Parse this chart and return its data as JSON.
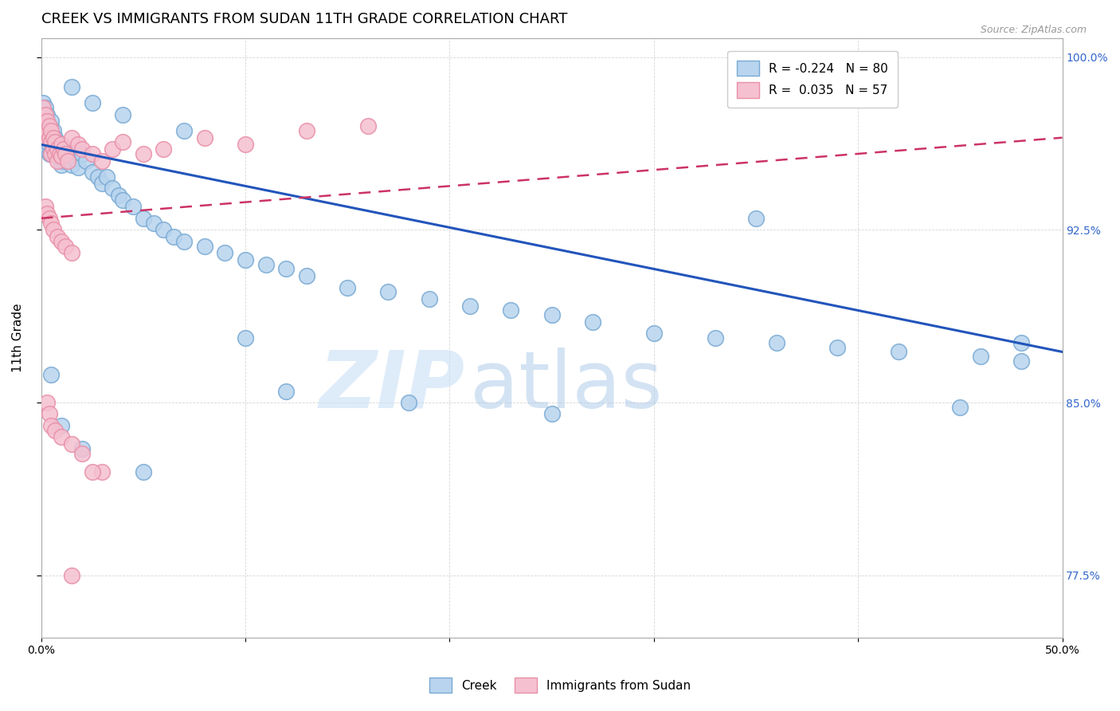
{
  "title": "CREEK VS IMMIGRANTS FROM SUDAN 11TH GRADE CORRELATION CHART",
  "source": "Source: ZipAtlas.com",
  "xlabel": "",
  "ylabel": "11th Grade",
  "xlim": [
    0.0,
    0.5
  ],
  "ylim": [
    0.748,
    1.008
  ],
  "xticks": [
    0.0,
    0.1,
    0.2,
    0.3,
    0.4,
    0.5
  ],
  "xticklabels": [
    "0.0%",
    "",
    "",
    "",
    "",
    "50.0%"
  ],
  "yticks": [
    0.775,
    0.85,
    0.925,
    1.0
  ],
  "yticklabels": [
    "77.5%",
    "85.0%",
    "92.5%",
    "100.0%"
  ],
  "creek_color": "#b8d4ee",
  "creek_edge": "#7aaad4",
  "sudan_color": "#f5c0d0",
  "sudan_edge": "#e890a8",
  "creek_trend_color": "#2255bb",
  "sudan_trend_color": "#cc3366",
  "watermark_zip": "ZIP",
  "watermark_atlas": "atlas",
  "background_color": "#ffffff",
  "title_fontsize": 13,
  "axis_label_fontsize": 11,
  "tick_fontsize": 10,
  "legend_fontsize": 11,
  "creek_x": [
    0.001,
    0.001,
    0.001,
    0.002,
    0.002,
    0.002,
    0.002,
    0.003,
    0.003,
    0.003,
    0.004,
    0.004,
    0.004,
    0.005,
    0.005,
    0.005,
    0.006,
    0.006,
    0.007,
    0.007,
    0.008,
    0.008,
    0.009,
    0.01,
    0.01,
    0.011,
    0.012,
    0.013,
    0.015,
    0.016,
    0.018,
    0.02,
    0.022,
    0.025,
    0.028,
    0.03,
    0.032,
    0.035,
    0.038,
    0.04,
    0.045,
    0.05,
    0.055,
    0.06,
    0.065,
    0.07,
    0.08,
    0.09,
    0.1,
    0.11,
    0.12,
    0.13,
    0.15,
    0.17,
    0.19,
    0.21,
    0.23,
    0.25,
    0.27,
    0.3,
    0.33,
    0.36,
    0.39,
    0.42,
    0.46,
    0.48,
    0.015,
    0.025,
    0.04,
    0.07,
    0.12,
    0.18,
    0.25,
    0.35,
    0.45,
    0.48,
    0.005,
    0.01,
    0.02,
    0.05,
    0.1
  ],
  "creek_y": [
    0.98,
    0.973,
    0.965,
    0.978,
    0.972,
    0.967,
    0.96,
    0.975,
    0.968,
    0.963,
    0.97,
    0.965,
    0.958,
    0.972,
    0.965,
    0.958,
    0.968,
    0.962,
    0.965,
    0.96,
    0.963,
    0.957,
    0.96,
    0.958,
    0.953,
    0.955,
    0.96,
    0.958,
    0.953,
    0.956,
    0.952,
    0.958,
    0.955,
    0.95,
    0.948,
    0.945,
    0.948,
    0.943,
    0.94,
    0.938,
    0.935,
    0.93,
    0.928,
    0.925,
    0.922,
    0.92,
    0.918,
    0.915,
    0.912,
    0.91,
    0.908,
    0.905,
    0.9,
    0.898,
    0.895,
    0.892,
    0.89,
    0.888,
    0.885,
    0.88,
    0.878,
    0.876,
    0.874,
    0.872,
    0.87,
    0.868,
    0.987,
    0.98,
    0.975,
    0.968,
    0.855,
    0.85,
    0.845,
    0.93,
    0.848,
    0.876,
    0.862,
    0.84,
    0.83,
    0.82,
    0.878
  ],
  "sudan_x": [
    0.001,
    0.001,
    0.002,
    0.002,
    0.002,
    0.003,
    0.003,
    0.004,
    0.004,
    0.005,
    0.005,
    0.005,
    0.006,
    0.006,
    0.007,
    0.007,
    0.008,
    0.008,
    0.009,
    0.01,
    0.01,
    0.011,
    0.012,
    0.013,
    0.015,
    0.018,
    0.02,
    0.025,
    0.03,
    0.035,
    0.04,
    0.05,
    0.06,
    0.08,
    0.1,
    0.13,
    0.16,
    0.002,
    0.003,
    0.004,
    0.005,
    0.006,
    0.008,
    0.01,
    0.012,
    0.015,
    0.003,
    0.004,
    0.005,
    0.007,
    0.01,
    0.015,
    0.02,
    0.03,
    0.015,
    0.025
  ],
  "sudan_y": [
    0.978,
    0.972,
    0.975,
    0.97,
    0.965,
    0.972,
    0.968,
    0.97,
    0.965,
    0.968,
    0.963,
    0.958,
    0.965,
    0.96,
    0.963,
    0.958,
    0.96,
    0.955,
    0.958,
    0.962,
    0.957,
    0.96,
    0.958,
    0.955,
    0.965,
    0.962,
    0.96,
    0.958,
    0.955,
    0.96,
    0.963,
    0.958,
    0.96,
    0.965,
    0.962,
    0.968,
    0.97,
    0.935,
    0.932,
    0.93,
    0.928,
    0.925,
    0.922,
    0.92,
    0.918,
    0.915,
    0.85,
    0.845,
    0.84,
    0.838,
    0.835,
    0.832,
    0.828,
    0.82,
    0.775,
    0.82
  ],
  "creek_line_x0": 0.0,
  "creek_line_x1": 0.5,
  "creek_line_y0": 0.962,
  "creek_line_y1": 0.872,
  "sudan_line_x0": 0.0,
  "sudan_line_x1": 0.5,
  "sudan_line_y0": 0.93,
  "sudan_line_y1": 0.965
}
